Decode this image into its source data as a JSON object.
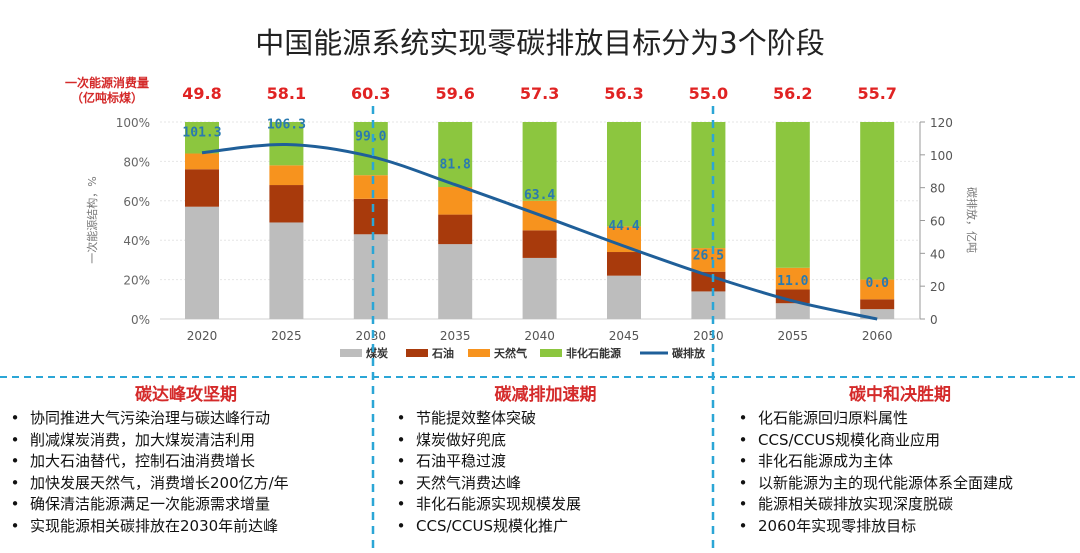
{
  "title": "中国能源系统实现零碳排放目标分为3个阶段",
  "consumption": {
    "label_line1": "一次能源消费量",
    "label_line2": "（亿吨标煤）",
    "values": [
      "49.8",
      "58.1",
      "60.3",
      "59.6",
      "57.3",
      "56.3",
      "55.0",
      "56.2",
      "55.7"
    ]
  },
  "chart_data": {
    "type": "bar",
    "stacked": true,
    "categories": [
      "2020",
      "2025",
      "2030",
      "2035",
      "2040",
      "2045",
      "2050",
      "2055",
      "2060"
    ],
    "ylabel": "一次能源结构，%",
    "y2label": "碳排放，亿吨",
    "ylim": [
      0,
      100
    ],
    "y2lim": [
      0,
      120
    ],
    "yticks": [
      "0%",
      "20%",
      "40%",
      "60%",
      "80%",
      "100%"
    ],
    "y2ticks": [
      "0",
      "20",
      "40",
      "60",
      "80",
      "100",
      "120"
    ],
    "grid": true,
    "legend": "bottom",
    "series": [
      {
        "name": "煤炭",
        "color": "#bdbdbd",
        "values": [
          57,
          49,
          43,
          38,
          31,
          22,
          14,
          8,
          5
        ]
      },
      {
        "name": "石油",
        "color": "#a83a0c",
        "values": [
          19,
          19,
          18,
          15,
          14,
          12,
          10,
          7,
          5
        ]
      },
      {
        "name": "天然气",
        "color": "#f7931e",
        "values": [
          8,
          10,
          12,
          14,
          15,
          13,
          12,
          11,
          10
        ]
      },
      {
        "name": "非化石能源",
        "color": "#8cc63f",
        "values": [
          16,
          22,
          27,
          33,
          40,
          53,
          64,
          74,
          80
        ]
      }
    ],
    "line": {
      "name": "碳排放",
      "color": "#1f5f99",
      "axis": "right",
      "values": [
        101.3,
        106.3,
        99.0,
        81.8,
        63.4,
        44.4,
        26.5,
        11.0,
        0.0
      ],
      "labels": [
        "101.3",
        "106.3",
        "99.0",
        "81.8",
        "63.4",
        "44.4",
        "26.5",
        "11.0",
        "0.0"
      ]
    }
  },
  "phases": [
    {
      "title": "碳达峰攻坚期",
      "items": [
        "协同推进大气污染治理与碳达峰行动",
        "削减煤炭消费，加大煤炭清洁利用",
        "加大石油替代，控制石油消费增长",
        "加快发展天然气，消费增长200亿方/年",
        "确保清洁能源满足一次能源需求增量",
        "实现能源相关碳排放在2030年前达峰"
      ]
    },
    {
      "title": "碳减排加速期",
      "items": [
        "节能提效整体突破",
        "煤炭做好兜底",
        "石油平稳过渡",
        "天然气消费达峰",
        "非化石能源实现规模发展",
        "CCS/CCUS规模化推广"
      ]
    },
    {
      "title": "碳中和决胜期",
      "items": [
        "化石能源回归原料属性",
        "CCS/CCUS规模化商业应用",
        "非化石能源成为主体",
        "以新能源为主的现代能源体系全面建成",
        "能源相关碳排放实现深度脱碳",
        "2060年实现零排放目标"
      ]
    }
  ],
  "bullet": "•",
  "colors": {
    "divider": "#2ba6d6",
    "emission_label": "#2a7ab0",
    "accent_red": "#d42a2a"
  }
}
